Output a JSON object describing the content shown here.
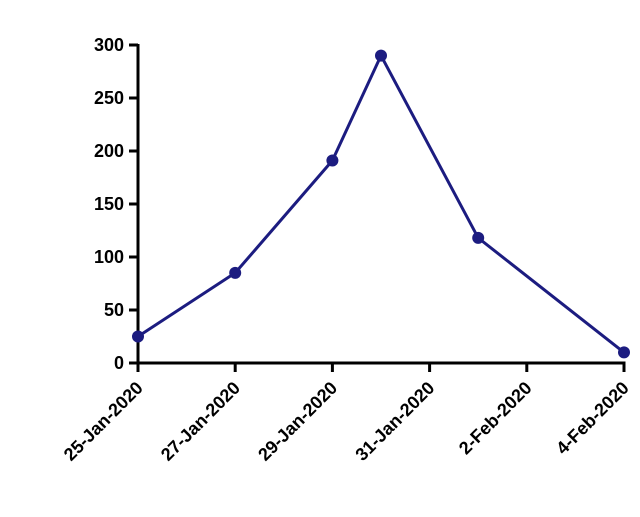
{
  "chart_data": {
    "type": "line",
    "x": [
      "2020-01-25",
      "2020-01-27",
      "2020-01-29",
      "2020-01-30",
      "2020-02-01",
      "2020-02-04"
    ],
    "series": [
      {
        "color": "#1c1c80",
        "values": [
          25,
          85,
          191,
          290,
          118,
          10
        ]
      }
    ],
    "xlim": [
      "2020-01-25",
      "2020-02-04"
    ],
    "xticks": [
      {
        "value": "2020-01-25",
        "label": "25-Jan-2020"
      },
      {
        "value": "2020-01-27",
        "label": "27-Jan-2020"
      },
      {
        "value": "2020-01-29",
        "label": "29-Jan-2020"
      },
      {
        "value": "2020-01-31",
        "label": "31-Jan-2020"
      },
      {
        "value": "2020-02-02",
        "label": "2-Feb-2020"
      },
      {
        "value": "2020-02-04",
        "label": "4-Feb-2020"
      }
    ],
    "ylim": [
      0,
      300
    ],
    "yticks": [
      0,
      50,
      100,
      150,
      200,
      250,
      300
    ]
  }
}
